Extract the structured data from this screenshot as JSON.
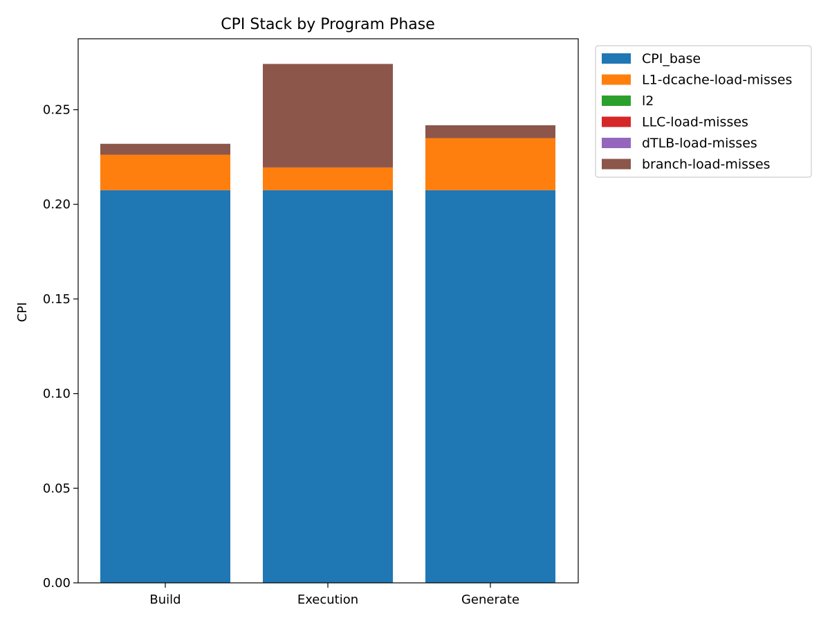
{
  "chart_data": {
    "type": "bar",
    "stacked": true,
    "title": "CPI Stack by Program Phase",
    "xlabel": "",
    "ylabel": "CPI",
    "categories": [
      "Build",
      "Execution",
      "Generate"
    ],
    "ylim": [
      0,
      0.2875
    ],
    "yticks": [
      "0.00",
      "0.05",
      "0.10",
      "0.15",
      "0.20",
      "0.25"
    ],
    "ytick_values": [
      0,
      0.05,
      0.1,
      0.15,
      0.2,
      0.25
    ],
    "grid": false,
    "legend_position": "outside-top-right",
    "series": [
      {
        "name": "CPI_base",
        "color": "#1f77b4",
        "values": [
          0.2075,
          0.2075,
          0.2075
        ]
      },
      {
        "name": "L1-dcache-load-misses",
        "color": "#ff7f0e",
        "values": [
          0.0187,
          0.012,
          0.0275
        ]
      },
      {
        "name": "l2",
        "color": "#2ca02c",
        "values": [
          0,
          0,
          0
        ]
      },
      {
        "name": "LLC-load-misses",
        "color": "#d62728",
        "values": [
          0,
          0,
          0
        ]
      },
      {
        "name": "dTLB-load-misses",
        "color": "#9467bd",
        "values": [
          0,
          0,
          0
        ]
      },
      {
        "name": "branch-load-misses",
        "color": "#8c564b",
        "values": [
          0.0058,
          0.0547,
          0.0068
        ]
      }
    ]
  }
}
